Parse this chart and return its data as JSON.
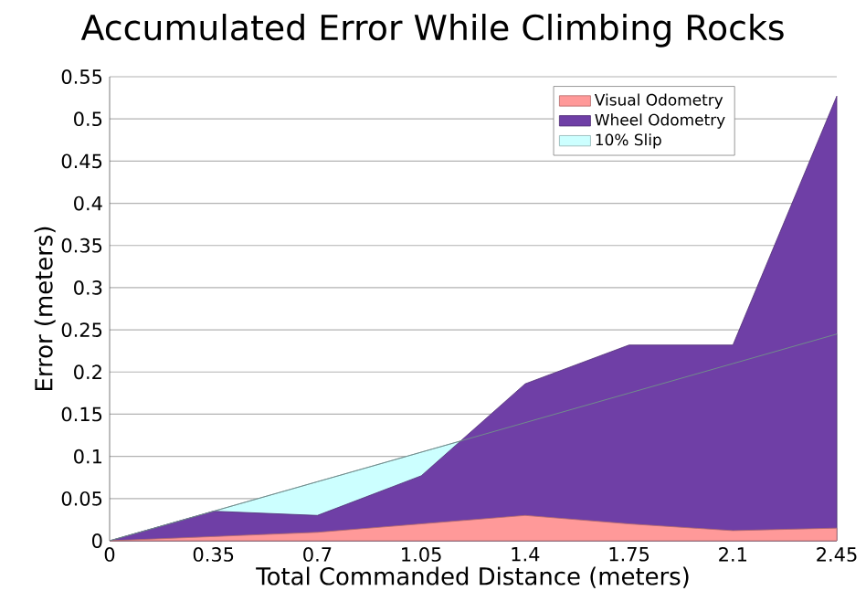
{
  "chart_data": {
    "type": "area",
    "title": "Accumulated Error While Climbing Rocks",
    "xlabel": "Total Commanded Distance (meters)",
    "ylabel": "Error (meters)",
    "x": [
      0,
      0.35,
      0.7,
      1.05,
      1.4,
      1.75,
      2.1,
      2.45
    ],
    "series": [
      {
        "name": "Visual Odometry",
        "color": "#ff9999",
        "values": [
          0,
          0.005,
          0.01,
          0.02,
          0.03,
          0.02,
          0.012,
          0.015
        ]
      },
      {
        "name": "Wheel Odometry",
        "color": "#6f3fa6",
        "values": [
          0,
          0.035,
          0.03,
          0.077,
          0.186,
          0.232,
          0.232,
          0.527
        ]
      },
      {
        "name": "10% Slip",
        "color": "#ccffff",
        "values": [
          0,
          0.035,
          0.07,
          0.105,
          0.14,
          0.175,
          0.21,
          0.245
        ]
      }
    ],
    "xlim": [
      0,
      2.45
    ],
    "ylim": [
      0,
      0.55
    ],
    "xticks": [
      0,
      0.35,
      0.7,
      1.05,
      1.4,
      1.75,
      2.1,
      2.45
    ],
    "yticks": [
      0,
      0.05,
      0.1,
      0.15,
      0.2,
      0.25,
      0.3,
      0.35,
      0.4,
      0.45,
      0.5,
      0.55
    ],
    "grid": "y",
    "legend": "top right"
  }
}
